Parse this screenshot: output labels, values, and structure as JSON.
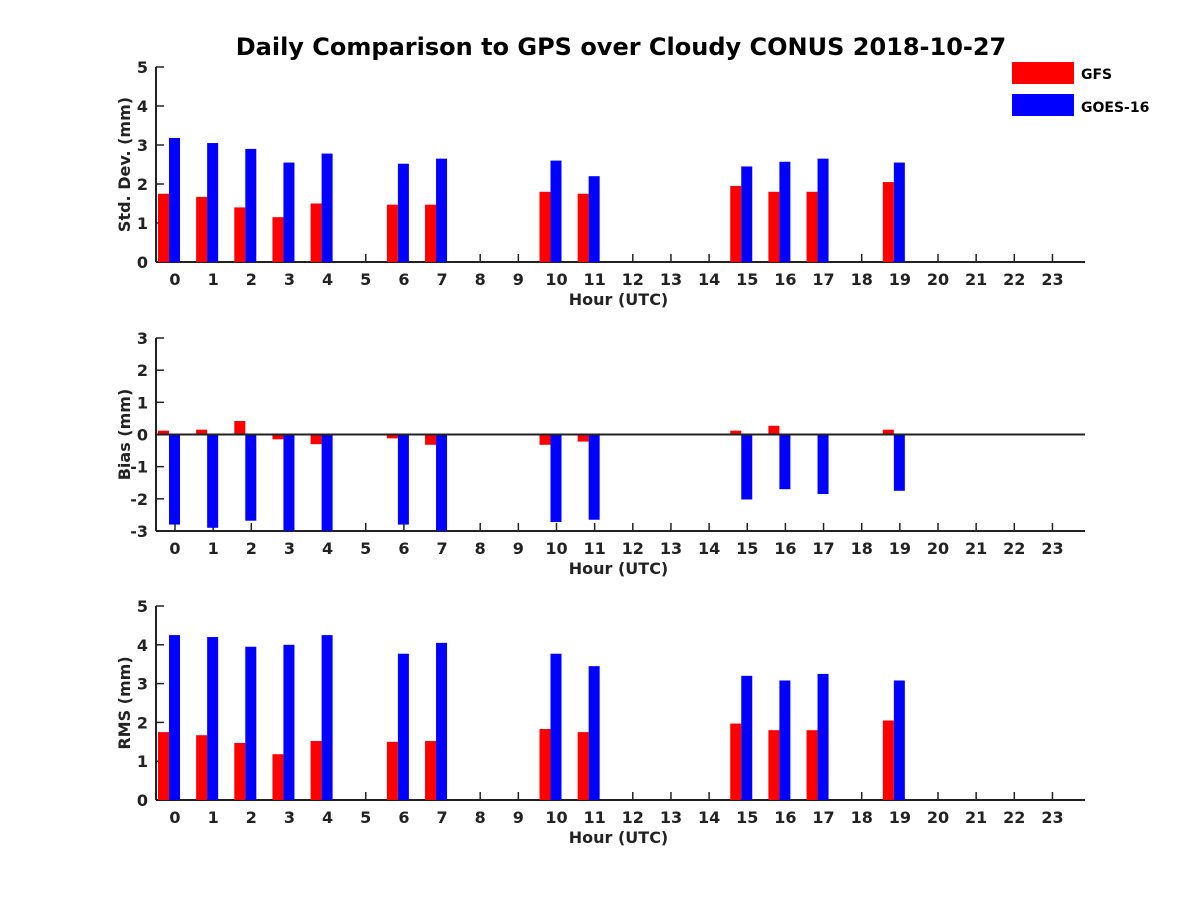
{
  "chart_data": {
    "title": "Daily Comparison to GPS over Cloudy CONUS 2018-10-27",
    "legend": {
      "placement": "top-right",
      "entries": [
        "GFS",
        "GOES-16"
      ]
    },
    "colors": {
      "GFS": "#ff0000",
      "GOES-16": "#0000ff"
    },
    "panels": [
      {
        "type": "bar",
        "ylabel": "Std. Dev. (mm)",
        "xlabel": "Hour (UTC)",
        "ylim": [
          0,
          5
        ],
        "yticks": [
          0,
          1,
          2,
          3,
          4,
          5
        ],
        "categories": [
          0,
          1,
          2,
          3,
          4,
          5,
          6,
          7,
          8,
          9,
          10,
          11,
          12,
          13,
          14,
          15,
          16,
          17,
          18,
          19,
          20,
          21,
          22,
          23
        ],
        "series": [
          {
            "name": "GFS",
            "values": [
              1.75,
              1.67,
              1.4,
              1.15,
              1.5,
              null,
              1.47,
              1.47,
              null,
              null,
              1.8,
              1.75,
              null,
              null,
              null,
              1.95,
              1.8,
              1.8,
              null,
              2.05,
              null,
              null,
              null,
              null
            ]
          },
          {
            "name": "GOES-16",
            "values": [
              3.18,
              3.05,
              2.9,
              2.55,
              2.78,
              null,
              2.52,
              2.65,
              null,
              null,
              2.6,
              2.2,
              null,
              null,
              null,
              2.45,
              2.57,
              2.65,
              null,
              2.55,
              null,
              null,
              null,
              null
            ]
          }
        ]
      },
      {
        "type": "bar",
        "ylabel": "Bias (mm)",
        "xlabel": "Hour (UTC)",
        "ylim": [
          -3,
          3
        ],
        "yticks": [
          -3,
          -2,
          -1,
          0,
          1,
          2,
          3
        ],
        "zero_line": true,
        "categories": [
          0,
          1,
          2,
          3,
          4,
          5,
          6,
          7,
          8,
          9,
          10,
          11,
          12,
          13,
          14,
          15,
          16,
          17,
          18,
          19,
          20,
          21,
          22,
          23
        ],
        "series": [
          {
            "name": "GFS",
            "values": [
              0.12,
              0.15,
              0.42,
              -0.15,
              -0.3,
              null,
              -0.12,
              -0.32,
              null,
              null,
              -0.32,
              -0.22,
              null,
              null,
              null,
              0.12,
              0.27,
              null,
              null,
              0.15,
              null,
              null,
              null,
              null
            ]
          },
          {
            "name": "GOES-16",
            "values": [
              -2.8,
              -2.9,
              -2.68,
              -3.0,
              -3.0,
              null,
              -2.8,
              -3.0,
              null,
              null,
              -2.72,
              -2.65,
              null,
              null,
              null,
              -2.02,
              -1.7,
              -1.85,
              null,
              -1.75,
              null,
              null,
              null,
              null
            ]
          }
        ]
      },
      {
        "type": "bar",
        "ylabel": "RMS (mm)",
        "xlabel": "Hour (UTC)",
        "ylim": [
          0,
          5
        ],
        "yticks": [
          0,
          1,
          2,
          3,
          4,
          5
        ],
        "categories": [
          0,
          1,
          2,
          3,
          4,
          5,
          6,
          7,
          8,
          9,
          10,
          11,
          12,
          13,
          14,
          15,
          16,
          17,
          18,
          19,
          20,
          21,
          22,
          23
        ],
        "series": [
          {
            "name": "GFS",
            "values": [
              1.75,
              1.67,
              1.47,
              1.18,
              1.52,
              null,
              1.5,
              1.52,
              null,
              null,
              1.83,
              1.75,
              null,
              null,
              null,
              1.97,
              1.8,
              1.8,
              null,
              2.05,
              null,
              null,
              null,
              null
            ]
          },
          {
            "name": "GOES-16",
            "values": [
              4.25,
              4.2,
              3.95,
              4.0,
              4.25,
              null,
              3.77,
              4.05,
              null,
              null,
              3.77,
              3.45,
              null,
              null,
              null,
              3.2,
              3.08,
              3.25,
              null,
              3.08,
              null,
              null,
              null,
              null
            ]
          }
        ]
      }
    ]
  }
}
